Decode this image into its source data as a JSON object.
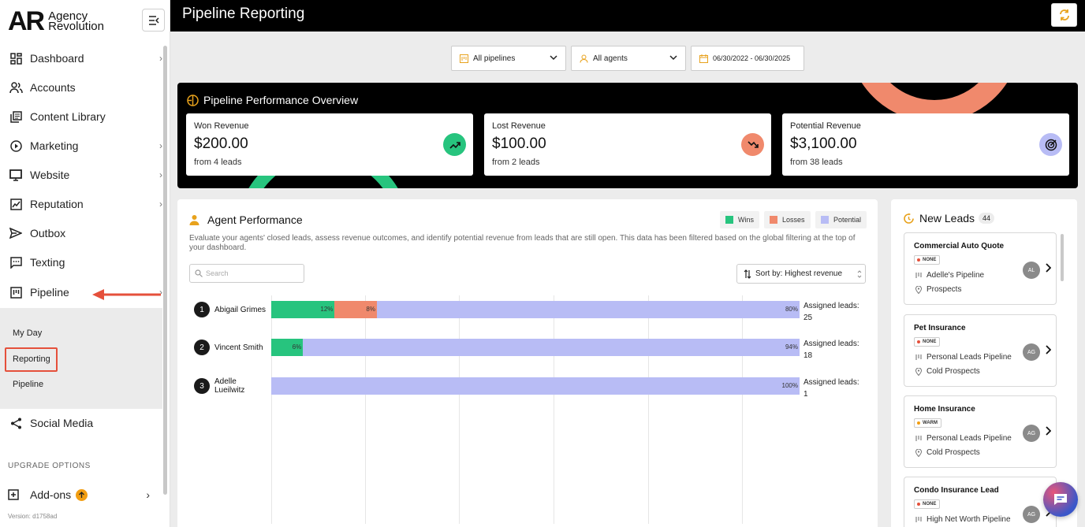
{
  "brand": {
    "logo_mark": "AR",
    "logo_line1": "Agency",
    "logo_line2": "Revolution"
  },
  "sidebar": {
    "items": [
      {
        "label": "Dashboard",
        "icon": "dashboard-icon",
        "has_chevron": true
      },
      {
        "label": "Accounts",
        "icon": "users-icon",
        "has_chevron": false
      },
      {
        "label": "Content Library",
        "icon": "library-icon",
        "has_chevron": false
      },
      {
        "label": "Marketing",
        "icon": "play-circle-icon",
        "has_chevron": true
      },
      {
        "label": "Website",
        "icon": "monitor-icon",
        "has_chevron": true
      },
      {
        "label": "Reputation",
        "icon": "reputation-icon",
        "has_chevron": true
      },
      {
        "label": "Outbox",
        "icon": "send-icon",
        "has_chevron": false
      },
      {
        "label": "Texting",
        "icon": "chat-icon",
        "has_chevron": false
      },
      {
        "label": "Pipeline",
        "icon": "pipeline-icon",
        "has_chevron": true
      }
    ],
    "pipeline_sub": [
      "My Day",
      "Reporting",
      "Pipeline"
    ],
    "social_media": "Social Media",
    "upgrade_label": "UPGRADE OPTIONS",
    "addons_label": "Add-ons",
    "version": "Version: d1758ad"
  },
  "header": {
    "title": "Pipeline Reporting"
  },
  "filters": {
    "pipelines": "All pipelines",
    "agents": "All agents",
    "date_range": "06/30/2022 - 06/30/2025"
  },
  "overview": {
    "title": "Pipeline Performance Overview",
    "cards": [
      {
        "label": "Won Revenue",
        "value": "$200.00",
        "sub": "from 4 leads",
        "color": "#27c47e"
      },
      {
        "label": "Lost Revenue",
        "value": "$100.00",
        "sub": "from 2 leads",
        "color": "#f0896c"
      },
      {
        "label": "Potential Revenue",
        "value": "$3,100.00",
        "sub": "from 38 leads",
        "color": "#b8bcf5"
      }
    ]
  },
  "agent_performance": {
    "title": "Agent Performance",
    "legend": [
      {
        "label": "Wins",
        "color": "#27c47e"
      },
      {
        "label": "Losses",
        "color": "#f0896c"
      },
      {
        "label": "Potential",
        "color": "#b8bcf5"
      }
    ],
    "description": "Evaluate your agents' closed leads, assess revenue outcomes, and identify potential revenue from leads that are still open. This data has been filtered based on the global filtering at the top of your dashboard.",
    "search_placeholder": "Search",
    "sort_label": "Sort by: Highest revenue",
    "assigned_prefix": "Assigned leads:",
    "agents": [
      {
        "rank": "1",
        "name": "Abigail Grimes",
        "wins_pct": 12,
        "losses_pct": 8,
        "potential_pct": 80,
        "wins_label": "12%",
        "losses_label": "8%",
        "potential_label": "80%",
        "assigned": "25"
      },
      {
        "rank": "2",
        "name": "Vincent Smith",
        "wins_pct": 6,
        "losses_pct": 0,
        "potential_pct": 94,
        "wins_label": "6%",
        "losses_label": "",
        "potential_label": "94%",
        "assigned": "18"
      },
      {
        "rank": "3",
        "name": "Adelle Lueilwitz",
        "wins_pct": 0,
        "losses_pct": 0,
        "potential_pct": 100,
        "wins_label": "",
        "losses_label": "",
        "potential_label": "100%",
        "assigned": "1"
      }
    ]
  },
  "new_leads": {
    "title": "New Leads",
    "count": "44",
    "items": [
      {
        "title": "Commercial Auto Quote",
        "tag": "NONE",
        "tag_color": "#e5503b",
        "pipeline": "Adelle's Pipeline",
        "stage": "Prospects",
        "avatar": "AL"
      },
      {
        "title": "Pet Insurance",
        "tag": "NONE",
        "tag_color": "#e5503b",
        "pipeline": "Personal Leads Pipeline",
        "stage": "Cold Prospects",
        "avatar": "AG"
      },
      {
        "title": "Home Insurance",
        "tag": "WARM",
        "tag_color": "#f29e12",
        "pipeline": "Personal Leads Pipeline",
        "stage": "Cold Prospects",
        "avatar": "AG"
      },
      {
        "title": "Condo Insurance Lead",
        "tag": "NONE",
        "tag_color": "#e5503b",
        "pipeline": "High Net Worth Pipeline",
        "stage": "",
        "avatar": "AG"
      }
    ]
  }
}
